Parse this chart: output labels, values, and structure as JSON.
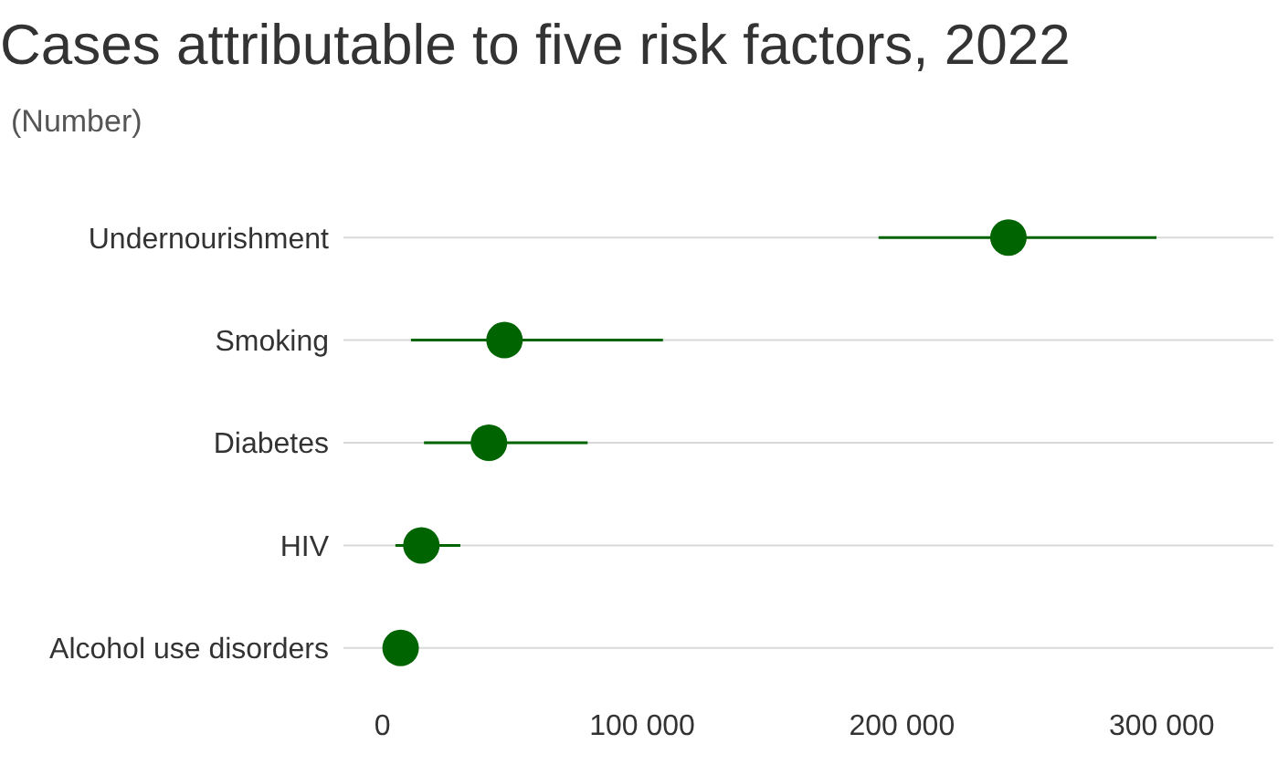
{
  "chart_data": {
    "type": "scatter",
    "title": "Cases attributable to five risk factors, 2022",
    "subtitle": "(Number)",
    "orientation": "horizontal",
    "categories": [
      "Undernourishment",
      "Smoking",
      "Diabetes",
      "HIV",
      "Alcohol use disorders"
    ],
    "series": [
      {
        "color": "#006400",
        "values": [
          241000,
          47000,
          41000,
          15000,
          7000
        ],
        "errors": [
          [
            191000,
            298000
          ],
          [
            11000,
            108000
          ],
          [
            16000,
            79000
          ],
          [
            5000,
            30000
          ],
          null
        ]
      }
    ],
    "xlim": [
      -15000,
      343000
    ],
    "xticks": [
      0,
      {
        "value": 100000,
        "label": "100 000"
      },
      {
        "value": 200000,
        "label": "200 000"
      },
      {
        "value": 300000,
        "label": "300 000"
      }
    ],
    "grid": "y",
    "marker": "circle"
  }
}
